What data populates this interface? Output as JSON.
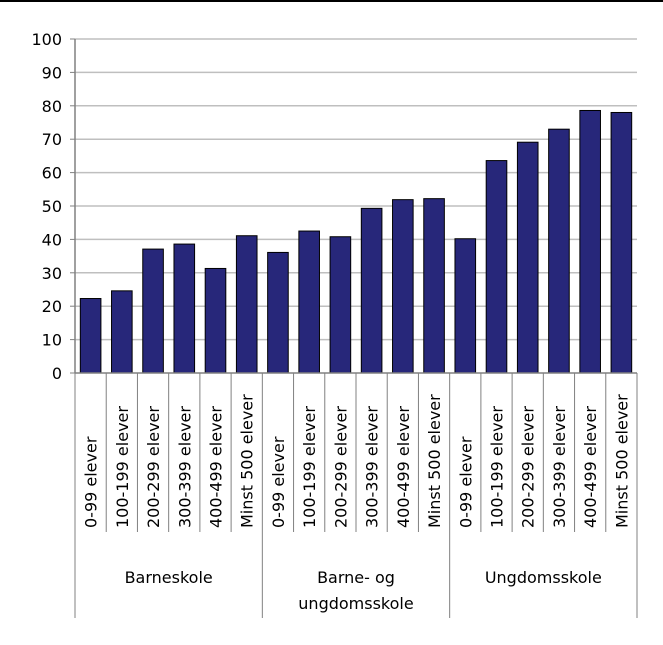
{
  "chart_data": {
    "type": "bar",
    "title": "",
    "xlabel": "",
    "ylabel": "",
    "ylim": [
      0,
      100
    ],
    "yticks": [
      0,
      10,
      20,
      30,
      40,
      50,
      60,
      70,
      80,
      90,
      100
    ],
    "grid": true,
    "legend": "none",
    "bar_color": "#27277a",
    "bar_edge_color": "#000000",
    "grid_color": "#bfbfbf",
    "groups": [
      {
        "label_lines": [
          "Barneskole"
        ],
        "categories": [
          "0-99 elever",
          "100-199 elever",
          "200-299 elever",
          "300-399 elever",
          "400-499 elever",
          "Minst 500 elever"
        ],
        "values": [
          22.3,
          24.6,
          37.1,
          38.6,
          31.3,
          41.1
        ]
      },
      {
        "label_lines": [
          "Barne- og",
          "ungdomsskole"
        ],
        "categories": [
          "0-99 elever",
          "100-199 elever",
          "200-299 elever",
          "300-399 elever",
          "400-499 elever",
          "Minst 500 elever"
        ],
        "values": [
          36.1,
          42.5,
          40.8,
          49.3,
          51.9,
          52.2
        ]
      },
      {
        "label_lines": [
          "Ungdomsskole"
        ],
        "categories": [
          "0-99 elever",
          "100-199 elever",
          "200-299 elever",
          "300-399 elever",
          "400-499 elever",
          "Minst 500 elever"
        ],
        "values": [
          40.2,
          63.6,
          69.1,
          73.0,
          78.6,
          78.0
        ]
      }
    ]
  }
}
